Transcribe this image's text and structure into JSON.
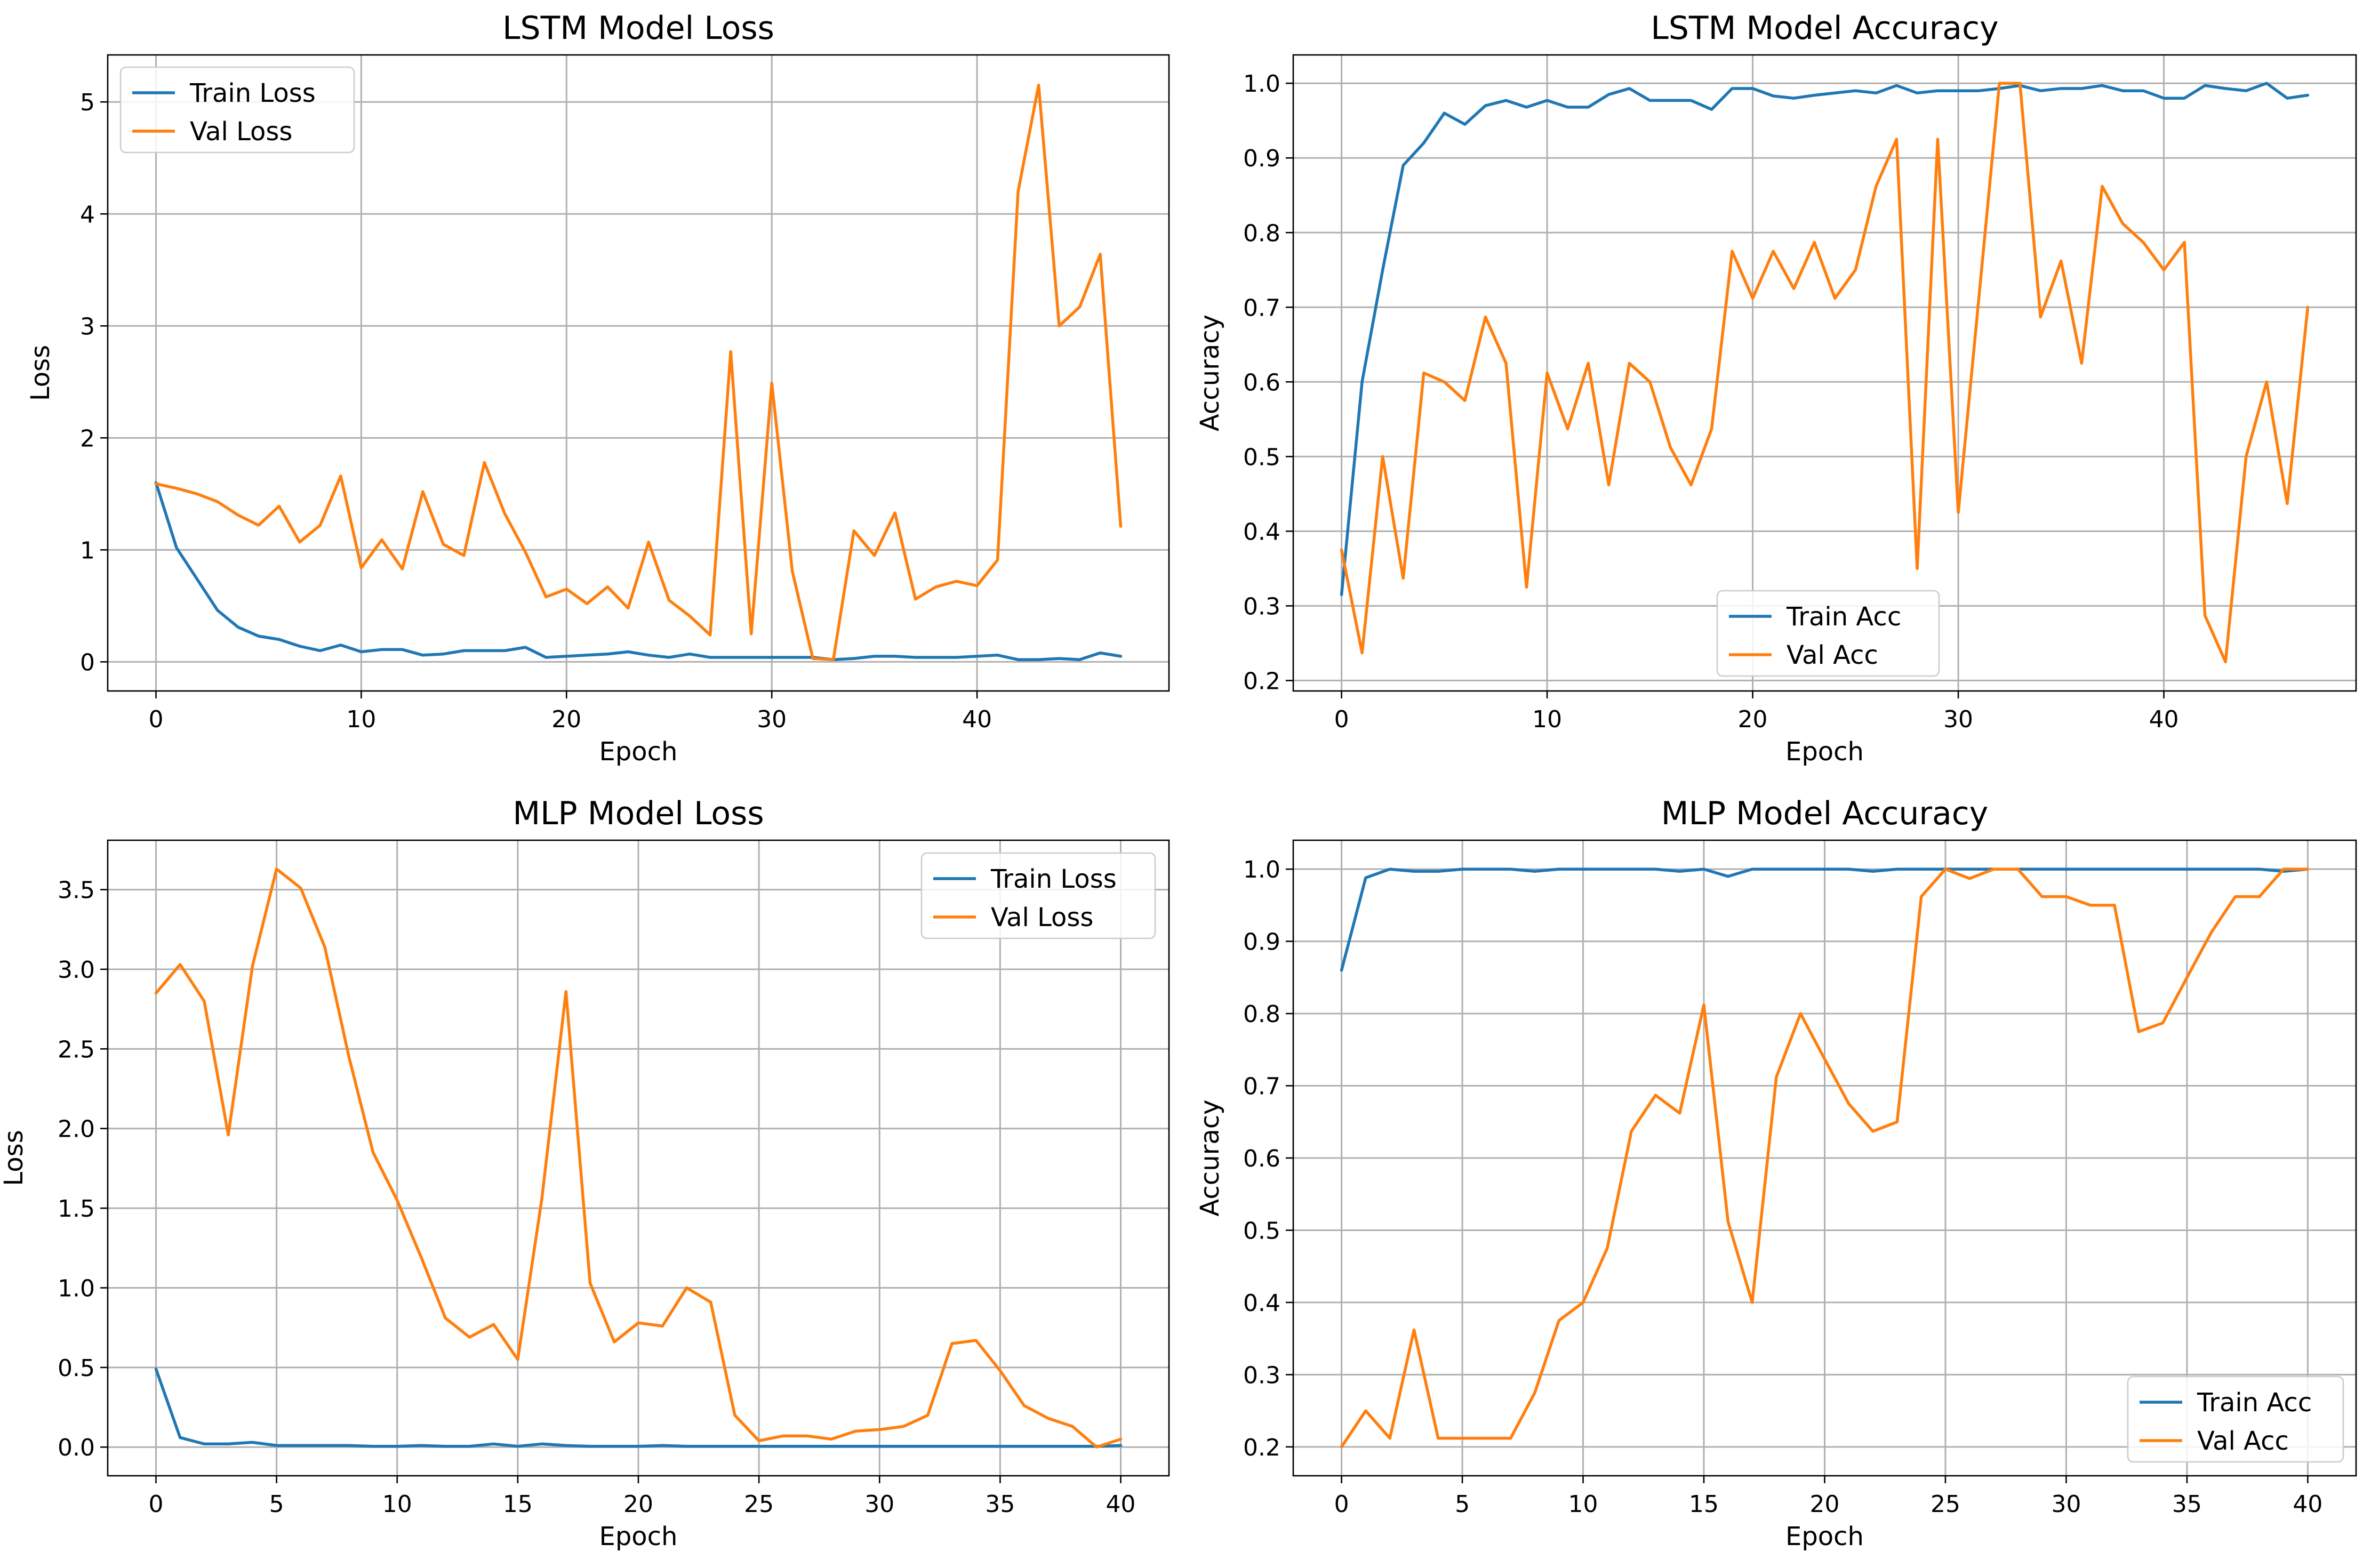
{
  "colors": {
    "train": "#1f77b4",
    "val": "#ff7f0e"
  },
  "chart_data": [
    {
      "type": "line",
      "title": "LSTM Model Loss",
      "xlabel": "Epoch",
      "ylabel": "Loss",
      "xlim": [
        -2.35,
        49.35
      ],
      "ylim": [
        -0.26,
        5.42
      ],
      "xticks": [
        0,
        10,
        20,
        30,
        40
      ],
      "yticks": [
        0,
        1,
        2,
        3,
        4,
        5
      ],
      "grid": true,
      "legend": "upper left",
      "series": [
        {
          "name": "Train Loss",
          "color": "#1f77b4",
          "values": [
            1.6,
            1.02,
            0.74,
            0.46,
            0.31,
            0.23,
            0.2,
            0.14,
            0.1,
            0.15,
            0.09,
            0.11,
            0.11,
            0.06,
            0.07,
            0.1,
            0.1,
            0.1,
            0.13,
            0.04,
            0.05,
            0.06,
            0.07,
            0.09,
            0.06,
            0.04,
            0.07,
            0.04,
            0.04,
            0.04,
            0.04,
            0.04,
            0.04,
            0.02,
            0.03,
            0.05,
            0.05,
            0.04,
            0.04,
            0.04,
            0.05,
            0.06,
            0.02,
            0.02,
            0.03,
            0.02,
            0.08,
            0.05
          ]
        },
        {
          "name": "Val Loss",
          "color": "#ff7f0e",
          "values": [
            1.59,
            1.55,
            1.5,
            1.43,
            1.31,
            1.22,
            1.39,
            1.07,
            1.22,
            1.66,
            0.84,
            1.09,
            0.83,
            1.52,
            1.05,
            0.95,
            1.78,
            1.32,
            0.98,
            0.58,
            0.65,
            0.52,
            0.67,
            0.48,
            1.07,
            0.55,
            0.41,
            0.24,
            2.77,
            0.25,
            2.49,
            0.81,
            0.03,
            0.02,
            1.17,
            0.95,
            1.33,
            0.56,
            0.67,
            0.72,
            0.68,
            0.91,
            4.2,
            5.15,
            3.0,
            3.17,
            3.64,
            1.21
          ]
        }
      ]
    },
    {
      "type": "line",
      "title": "LSTM Model Accuracy",
      "xlabel": "Epoch",
      "ylabel": "Accuracy",
      "xlim": [
        -2.35,
        49.35
      ],
      "ylim": [
        0.186,
        1.038
      ],
      "xticks": [
        0,
        10,
        20,
        30,
        40
      ],
      "yticks": [
        0.2,
        0.3,
        0.4,
        0.5,
        0.6,
        0.7,
        0.8,
        0.9,
        1.0
      ],
      "ytick_labels": [
        "0.2",
        "0.3",
        "0.4",
        "0.5",
        "0.6",
        "0.7",
        "0.8",
        "0.9",
        "1.0"
      ],
      "grid": true,
      "legend": "lower center",
      "series": [
        {
          "name": "Train Acc",
          "color": "#1f77b4",
          "values": [
            0.315,
            0.6,
            0.75,
            0.89,
            0.92,
            0.96,
            0.945,
            0.97,
            0.977,
            0.968,
            0.977,
            0.968,
            0.968,
            0.985,
            0.993,
            0.977,
            0.977,
            0.977,
            0.965,
            0.993,
            0.993,
            0.983,
            0.98,
            0.984,
            0.987,
            0.99,
            0.987,
            0.997,
            0.987,
            0.99,
            0.99,
            0.99,
            0.993,
            0.997,
            0.99,
            0.993,
            0.993,
            0.997,
            0.99,
            0.99,
            0.98,
            0.98,
            0.997,
            0.993,
            0.99,
            1.0,
            0.98,
            0.984
          ]
        },
        {
          "name": "Val Acc",
          "color": "#ff7f0e",
          "values": [
            0.375,
            0.237,
            0.5,
            0.337,
            0.612,
            0.6,
            0.575,
            0.687,
            0.625,
            0.325,
            0.612,
            0.537,
            0.625,
            0.462,
            0.625,
            0.6,
            0.512,
            0.462,
            0.537,
            0.775,
            0.712,
            0.775,
            0.725,
            0.787,
            0.712,
            0.75,
            0.862,
            0.925,
            0.35,
            0.925,
            0.425,
            0.712,
            1.0,
            1.0,
            0.687,
            0.762,
            0.625,
            0.862,
            0.812,
            0.787,
            0.75,
            0.787,
            0.287,
            0.225,
            0.5,
            0.6,
            0.437,
            0.7
          ]
        }
      ]
    },
    {
      "type": "line",
      "title": "MLP Model Loss",
      "xlabel": "Epoch",
      "ylabel": "Loss",
      "xlim": [
        -2.0,
        42.0
      ],
      "ylim": [
        -0.18,
        3.81
      ],
      "xticks": [
        0,
        5,
        10,
        15,
        20,
        25,
        30,
        35,
        40
      ],
      "yticks": [
        0,
        0.5,
        1,
        1.5,
        2,
        2.5,
        3,
        3.5
      ],
      "ytick_labels": [
        "0.0",
        "0.5",
        "1.0",
        "1.5",
        "2.0",
        "2.5",
        "3.0",
        "3.5"
      ],
      "grid": true,
      "legend": "upper right",
      "series": [
        {
          "name": "Train Loss",
          "color": "#1f77b4",
          "values": [
            0.49,
            0.06,
            0.02,
            0.02,
            0.03,
            0.01,
            0.01,
            0.01,
            0.01,
            0.005,
            0.005,
            0.01,
            0.005,
            0.005,
            0.02,
            0.005,
            0.02,
            0.01,
            0.005,
            0.005,
            0.005,
            0.01,
            0.005,
            0.005,
            0.005,
            0.005,
            0.005,
            0.005,
            0.005,
            0.005,
            0.005,
            0.005,
            0.005,
            0.005,
            0.005,
            0.005,
            0.005,
            0.005,
            0.005,
            0.005,
            0.01
          ]
        },
        {
          "name": "Val Loss",
          "color": "#ff7f0e",
          "values": [
            2.85,
            3.03,
            2.8,
            1.96,
            3.02,
            3.63,
            3.51,
            3.14,
            2.45,
            1.85,
            1.55,
            1.19,
            0.81,
            0.69,
            0.77,
            0.55,
            1.56,
            2.86,
            1.03,
            0.66,
            0.78,
            0.76,
            1.0,
            0.91,
            0.2,
            0.04,
            0.07,
            0.07,
            0.05,
            0.1,
            0.11,
            0.13,
            0.2,
            0.65,
            0.67,
            0.48,
            0.26,
            0.18,
            0.13,
            0.0,
            0.05
          ]
        }
      ]
    },
    {
      "type": "line",
      "title": "MLP Model Accuracy",
      "xlabel": "Epoch",
      "ylabel": "Accuracy",
      "xlim": [
        -2.0,
        42.0
      ],
      "ylim": [
        0.16,
        1.04
      ],
      "xticks": [
        0,
        5,
        10,
        15,
        20,
        25,
        30,
        35,
        40
      ],
      "yticks": [
        0.2,
        0.3,
        0.4,
        0.5,
        0.6,
        0.7,
        0.8,
        0.9,
        1.0
      ],
      "ytick_labels": [
        "0.2",
        "0.3",
        "0.4",
        "0.5",
        "0.6",
        "0.7",
        "0.8",
        "0.9",
        "1.0"
      ],
      "grid": true,
      "legend": "lower right",
      "series": [
        {
          "name": "Train Acc",
          "color": "#1f77b4",
          "values": [
            0.86,
            0.988,
            1.0,
            0.997,
            0.997,
            1.0,
            1.0,
            1.0,
            0.997,
            1.0,
            1.0,
            1.0,
            1.0,
            1.0,
            0.997,
            1.0,
            0.99,
            1.0,
            1.0,
            1.0,
            1.0,
            1.0,
            0.997,
            1.0,
            1.0,
            1.0,
            1.0,
            1.0,
            1.0,
            1.0,
            1.0,
            1.0,
            1.0,
            1.0,
            1.0,
            1.0,
            1.0,
            1.0,
            1.0,
            0.997,
            1.0
          ]
        },
        {
          "name": "Val Acc",
          "color": "#ff7f0e",
          "values": [
            0.2,
            0.25,
            0.212,
            0.362,
            0.212,
            0.212,
            0.212,
            0.212,
            0.275,
            0.375,
            0.4,
            0.475,
            0.637,
            0.687,
            0.662,
            0.812,
            0.512,
            0.4,
            0.712,
            0.8,
            0.737,
            0.675,
            0.637,
            0.65,
            0.962,
            1.0,
            0.987,
            1.0,
            1.0,
            0.962,
            0.962,
            0.95,
            0.95,
            0.775,
            0.787,
            0.85,
            0.912,
            0.962,
            0.962,
            1.0,
            1.0
          ]
        }
      ]
    }
  ]
}
